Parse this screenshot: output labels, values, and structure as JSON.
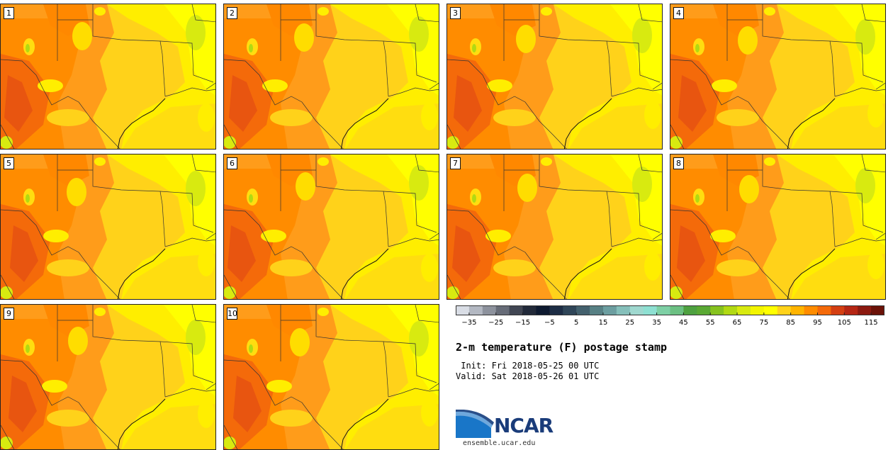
{
  "figure": {
    "title": "2-m temperature (F) postage stamp",
    "init_label": " Init:",
    "init_value": "Fri 2018-05-25 00 UTC",
    "valid_label": "Valid:",
    "valid_value": "Sat 2018-05-26 01 UTC",
    "logo_text": "NCAR",
    "website": "ensemble.ucar.edu"
  },
  "members": [
    "1",
    "2",
    "3",
    "4",
    "5",
    "6",
    "7",
    "8",
    "9",
    "10"
  ],
  "colorbar": {
    "colors": [
      "#d9dde5",
      "#b3b8c2",
      "#8d929d",
      "#676c78",
      "#414653",
      "#222a3a",
      "#0e1a30",
      "#1d2d45",
      "#2f4558",
      "#43606d",
      "#578084",
      "#6c9ea0",
      "#85bfba",
      "#9fd8cf",
      "#8ee0d2",
      "#7ed0a5",
      "#6cc083",
      "#4ea140",
      "#5aa934",
      "#86c21e",
      "#b1d913",
      "#d8ea10",
      "#f3f500",
      "#ffff00",
      "#ffd21a",
      "#ffb400",
      "#ff8c00",
      "#f46a0a",
      "#d43f12",
      "#b52614",
      "#8c1a10",
      "#6b1208"
    ],
    "tick_labels": [
      "−35",
      "−25",
      "−15",
      "−5",
      "5",
      "15",
      "25",
      "35",
      "45",
      "55",
      "65",
      "75",
      "85",
      "95",
      "105",
      "115"
    ],
    "min": -40,
    "max": 120
  }
}
